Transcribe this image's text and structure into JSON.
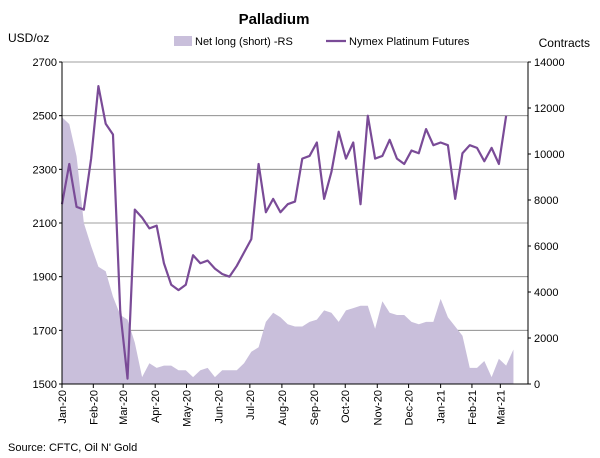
{
  "chart_data": {
    "type": "line",
    "title": "Palladium",
    "left_unit": "USD/oz",
    "right_unit": "Contracts",
    "source": "Source: CFTC, Oil N' Gold",
    "left_axis": {
      "min": 1500,
      "max": 2700,
      "ticks": [
        "1500",
        "1700",
        "1900",
        "2100",
        "2300",
        "2500",
        "2700"
      ]
    },
    "right_axis": {
      "min": 0,
      "max": 14000,
      "ticks": [
        "0",
        "2000",
        "4000",
        "6000",
        "8000",
        "10000",
        "12000",
        "14000"
      ]
    },
    "x_ticks": [
      "Jan-20",
      "Feb-20",
      "Mar-20",
      "Apr-20",
      "May-20",
      "Jun-20",
      "Jul-20",
      "Aug-20",
      "Sep-20",
      "Oct-20",
      "Nov-20",
      "Dec-20",
      "Jan-21",
      "Feb-21",
      "Mar-21"
    ],
    "x_range": [
      0,
      64
    ],
    "tick_positions": [
      0,
      4.3,
      8.4,
      12.8,
      17.1,
      21.5,
      25.8,
      30.2,
      34.6,
      38.9,
      43.3,
      47.6,
      52.0,
      56.3,
      60.2
    ],
    "grid": true,
    "legend_position": "top",
    "series": [
      {
        "name": "Net long (short) -RS",
        "type": "area",
        "axis": "right",
        "color": "#c9bfdb",
        "values": [
          11600,
          11300,
          9900,
          7000,
          6000,
          5100,
          4900,
          3800,
          3000,
          2800,
          1800,
          300,
          900,
          700,
          800,
          800,
          600,
          600,
          300,
          600,
          700,
          300,
          600,
          600,
          600,
          900,
          1400,
          1600,
          2700,
          3100,
          2900,
          2600,
          2500,
          2500,
          2700,
          2800,
          3200,
          3100,
          2700,
          3200,
          3300,
          3400,
          3400,
          2400,
          3600,
          3100,
          3000,
          3000,
          2700,
          2600,
          2700,
          2700,
          3700,
          2900,
          2500,
          2100,
          700,
          700,
          1000,
          300,
          1100,
          800,
          1500
        ]
      },
      {
        "name": "Nymex Platinum Futures",
        "type": "line",
        "axis": "left",
        "color": "#7a4b97",
        "values": [
          2170,
          2320,
          2160,
          2150,
          2340,
          2610,
          2470,
          2430,
          1770,
          1520,
          2150,
          2120,
          2080,
          2090,
          1950,
          1870,
          1850,
          1870,
          1980,
          1950,
          1960,
          1930,
          1910,
          1900,
          1940,
          1990,
          2040,
          2320,
          2140,
          2190,
          2140,
          2170,
          2180,
          2340,
          2350,
          2400,
          2190,
          2290,
          2440,
          2340,
          2400,
          2170,
          2500,
          2340,
          2350,
          2410,
          2340,
          2320,
          2370,
          2360,
          2450,
          2390,
          2400,
          2390,
          2190,
          2360,
          2390,
          2380,
          2330,
          2380,
          2320,
          2500
        ]
      }
    ]
  }
}
